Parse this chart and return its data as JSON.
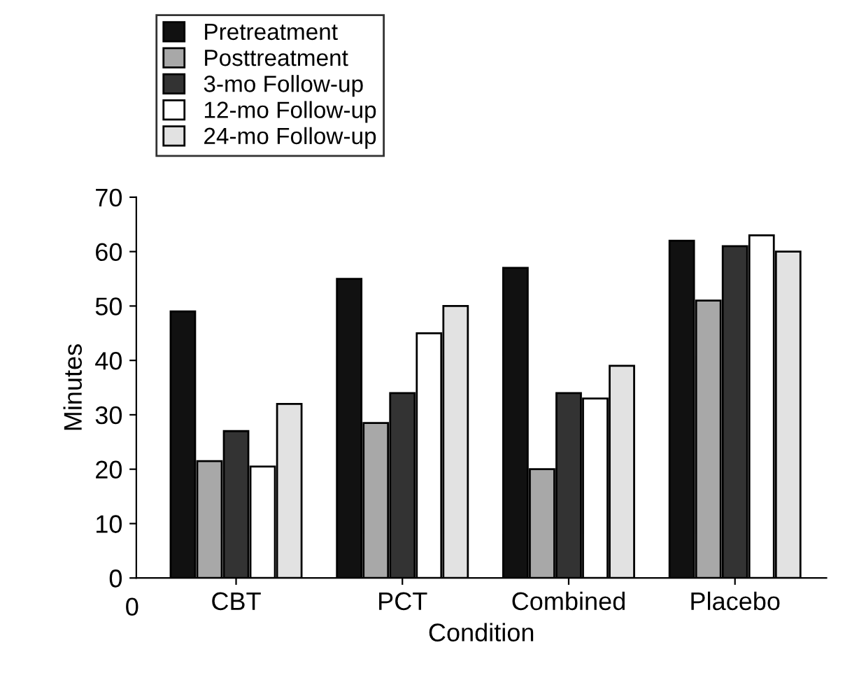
{
  "chart_data": {
    "type": "bar",
    "xlabel": "Condition",
    "ylabel": "Minutes",
    "categories": [
      "CBT",
      "PCT",
      "Combined",
      "Placebo"
    ],
    "series": [
      {
        "name": "Pretreatment",
        "color": "#111111",
        "values": [
          49,
          55,
          57,
          62
        ]
      },
      {
        "name": "Posttreatment",
        "color": "#a8a8a8",
        "values": [
          21.5,
          28.5,
          20,
          51
        ]
      },
      {
        "name": "3-mo Follow-up",
        "color": "#333333",
        "values": [
          27,
          34,
          34,
          61
        ]
      },
      {
        "name": "12-mo Follow-up",
        "color": "#ffffff",
        "values": [
          20.5,
          45,
          33,
          63
        ]
      },
      {
        "name": "24-mo Follow-up",
        "color": "#e2e2e2",
        "values": [
          32,
          50,
          39,
          60
        ]
      }
    ],
    "ylim": [
      0,
      70
    ],
    "yticks": [
      0,
      10,
      20,
      30,
      40,
      50,
      60,
      70
    ],
    "grid": false,
    "legend": "top left",
    "annotations": [
      "0"
    ]
  }
}
